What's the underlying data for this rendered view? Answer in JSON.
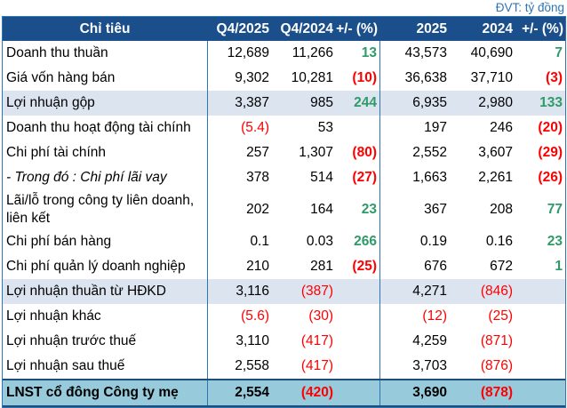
{
  "unit_note": "ĐVT: tỷ đồng",
  "colors": {
    "header_bg": "#1B4F8C",
    "header_text": "#FFFFFF",
    "unit_text": "#2E74B5",
    "positive": "#2E9B68",
    "negative": "#FF0000",
    "highlight_row": "#DCE4F0",
    "total_row_bg": "#97CBDC",
    "total_border": "#1F4E79",
    "grid_border": "#2E75B6"
  },
  "chart_data": {
    "type": "table",
    "unit_note": "ĐVT: tỷ đồng",
    "columns": [
      {
        "key": "label",
        "label": "Chỉ tiêu"
      },
      {
        "key": "q4-2025",
        "label": "Q4/2025"
      },
      {
        "key": "q4-2024",
        "label": "Q4/2024"
      },
      {
        "key": "chg-q",
        "label": "+/- (%)"
      },
      {
        "key": "y-2025",
        "label": "2025"
      },
      {
        "key": "y-2024",
        "label": "2024"
      },
      {
        "key": "chg-y",
        "label": "+/- (%)"
      }
    ],
    "rows": [
      {
        "label": "Doanh thu thuần",
        "values": [
          "12,689",
          "11,266",
          "13",
          "43,573",
          "40,690",
          "7"
        ],
        "style": "normal"
      },
      {
        "label": "Giá vốn hàng bán",
        "values": [
          "9,302",
          "10,281",
          "(10)",
          "36,638",
          "37,710",
          "(3)"
        ],
        "style": "normal"
      },
      {
        "label": "Lợi nhuận gộp",
        "values": [
          "3,387",
          "985",
          "244",
          "6,935",
          "2,980",
          "133"
        ],
        "style": "highlight"
      },
      {
        "label": "Doanh thu hoạt động tài chính",
        "values": [
          "(5.4)",
          "53",
          "",
          "197",
          "246",
          "(20)"
        ],
        "style": "normal"
      },
      {
        "label": "Chi phí tài chính",
        "values": [
          "257",
          "1,307",
          "(80)",
          "2,552",
          "3,607",
          "(29)"
        ],
        "style": "normal"
      },
      {
        "label": "- Trong đó : Chi phí lãi vay",
        "values": [
          "378",
          "514",
          "(27)",
          "1,663",
          "2,261",
          "(26)"
        ],
        "style": "normal",
        "italic": true
      },
      {
        "label": "Lãi/lỗ trong công ty liên doanh, liên kết",
        "values": [
          "202",
          "164",
          "23",
          "367",
          "208",
          "77"
        ],
        "style": "normal"
      },
      {
        "label": "Chi phí bán hàng",
        "values": [
          "0.1",
          "0.03",
          "266",
          "0.19",
          "0.16",
          "23"
        ],
        "style": "normal"
      },
      {
        "label": "Chi phí quản lý doanh nghiệp",
        "values": [
          "210",
          "281",
          "(25)",
          "676",
          "672",
          "1"
        ],
        "style": "normal"
      },
      {
        "label": "Lợi nhuận thuần từ HĐKD",
        "values": [
          "3,116",
          "(387)",
          "",
          "4,271",
          "(846)",
          ""
        ],
        "style": "highlight"
      },
      {
        "label": "Lợi nhuận khác",
        "values": [
          "(5.6)",
          "(30)",
          "",
          "(12)",
          "(25)",
          ""
        ],
        "style": "normal"
      },
      {
        "label": "Lợi nhuận trước thuế",
        "values": [
          "3,110",
          "(417)",
          "",
          "4,259",
          "(871)",
          ""
        ],
        "style": "normal"
      },
      {
        "label": "Lợi nhuận sau thuế",
        "values": [
          "2,558",
          "(417)",
          "",
          "3,703",
          "(876)",
          ""
        ],
        "style": "normal"
      },
      {
        "label": "LNST cổ đông Công ty mẹ",
        "values": [
          "2,554",
          "(420)",
          "",
          "3,690",
          "(878)",
          ""
        ],
        "style": "total"
      }
    ]
  }
}
